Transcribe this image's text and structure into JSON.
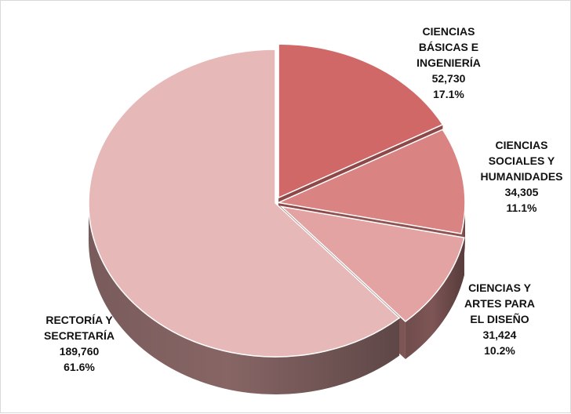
{
  "chart_data": {
    "type": "pie",
    "title": "",
    "slices": [
      {
        "label_lines": [
          "CIENCIAS",
          "BÁSICAS E",
          "INGENIERÍA"
        ],
        "value": 52730,
        "value_label": "52,730",
        "percent": 17.1,
        "percent_label": "17.1%",
        "color": "#d06868",
        "side_color": "#8f4848"
      },
      {
        "label_lines": [
          "CIENCIAS",
          "SOCIALES Y",
          "HUMANIDADES"
        ],
        "value": 34305,
        "value_label": "34,305",
        "percent": 11.1,
        "percent_label": "11.1%",
        "color": "#d98482",
        "side_color": "#8e5452"
      },
      {
        "label_lines": [
          "CIENCIAS Y",
          "ARTES PARA",
          "EL DISEÑO"
        ],
        "value": 31424,
        "value_label": "31,424",
        "percent": 10.2,
        "percent_label": "10.2%",
        "color": "#e3a3a3",
        "side_color": "#7d5555"
      },
      {
        "label_lines": [
          "RECTORÍA Y",
          "SECRETARÍA"
        ],
        "value": 189760,
        "value_label": "189,760",
        "percent": 61.6,
        "percent_label": "61.6%",
        "color": "#e6b8b7",
        "side_color": "#876565"
      }
    ],
    "legend": "none"
  }
}
